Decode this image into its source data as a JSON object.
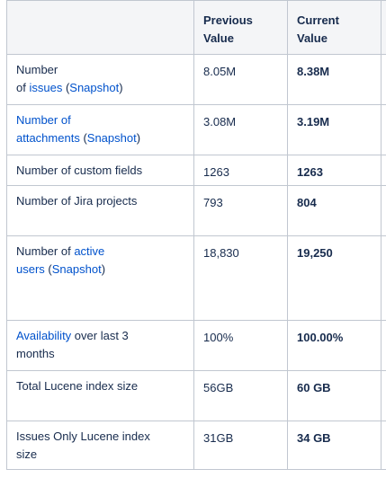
{
  "table": {
    "headers": [
      "",
      "Previous Value",
      "Current Value",
      ""
    ],
    "rows": [
      {
        "metric_parts": [
          {
            "text": "Number\nof ",
            "link": false
          },
          {
            "text": "issues",
            "link": true
          },
          {
            "text": " (",
            "link": false
          },
          {
            "text": "Snapshot",
            "link": true
          },
          {
            "text": ")",
            "link": false
          }
        ],
        "previous": "8.05M",
        "current": "8.38M"
      },
      {
        "metric_parts": [
          {
            "text": "Number of\nattachments",
            "link": true
          },
          {
            "text": " (",
            "link": false
          },
          {
            "text": "Snapshot",
            "link": true
          },
          {
            "text": ")",
            "link": false
          }
        ],
        "previous": "3.08M",
        "current": "3.19M"
      },
      {
        "metric_parts": [
          {
            "text": "Number of custom fields",
            "link": false
          }
        ],
        "previous": "1263",
        "current": "1263"
      },
      {
        "metric_parts": [
          {
            "text": "Number of Jira projects",
            "link": false
          }
        ],
        "previous": "793",
        "current": "804"
      },
      {
        "metric_parts": [
          {
            "text": "Number of ",
            "link": false
          },
          {
            "text": "active\nusers",
            "link": true
          },
          {
            "text": " (",
            "link": false
          },
          {
            "text": "Snapshot",
            "link": true
          },
          {
            "text": ")",
            "link": false
          }
        ],
        "previous": "18,830",
        "current": "19,250"
      },
      {
        "metric_parts": [
          {
            "text": "Availability",
            "link": true
          },
          {
            "text": " over last 3\nmonths",
            "link": false
          }
        ],
        "previous": "100%",
        "current": "100.00%"
      },
      {
        "metric_parts": [
          {
            "text": "Total Lucene index size",
            "link": false
          }
        ],
        "previous": "56GB",
        "current": "60 GB"
      },
      {
        "metric_parts": [
          {
            "text": "Issues Only Lucene index\nsize",
            "link": false
          }
        ],
        "previous": "31GB",
        "current": "34 GB"
      }
    ]
  },
  "colors": {
    "link": "#0052cc",
    "text": "#172b4d",
    "header_bg": "#f4f5f7",
    "border": "#c1c7d0"
  }
}
